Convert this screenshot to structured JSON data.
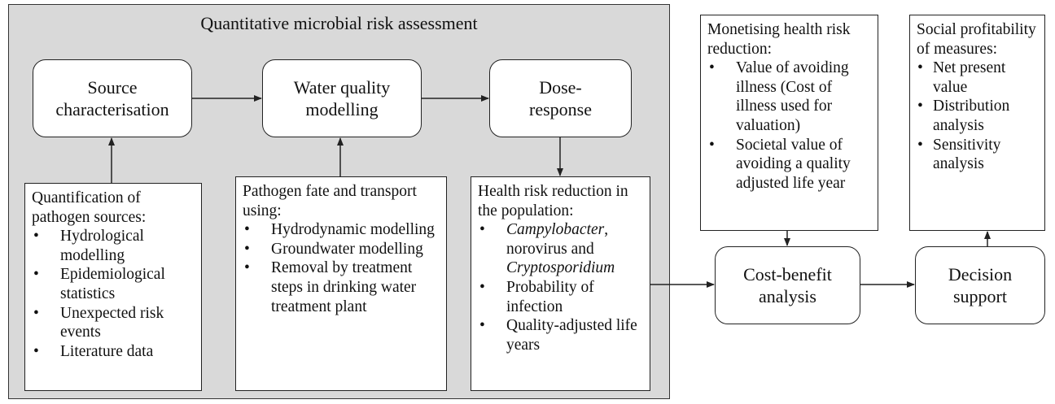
{
  "title": "Quantitative microbial risk assessment",
  "process_nodes": [
    {
      "label": "Source characterisation"
    },
    {
      "label": "Water quality modelling"
    },
    {
      "label": "Dose-response"
    }
  ],
  "detail_boxes": [
    {
      "heading": "Quantification of pathogen sources:",
      "items": [
        "Hydrological modelling",
        "Epidemiological statistics",
        "Unexpected risk events",
        "Literature data"
      ]
    },
    {
      "heading": "Pathogen fate and transport using:",
      "items": [
        "Hydrodynamic modelling",
        "Groundwater modelling",
        "Removal by treatment steps in drinking water treatment plant"
      ]
    },
    {
      "heading": "Health risk reduction in the population:",
      "items": [
        [
          "Campylobacter",
          ", norovirus and ",
          "Cryptosporidium"
        ],
        "Probability of infection",
        "Quality-adjusted life years"
      ]
    }
  ],
  "valuation_boxes": [
    {
      "heading": "Monetising health risk reduction:",
      "items": [
        "Value of avoiding illness (Cost of illness used for valuation)",
        "Societal value of avoiding a quality adjusted life year"
      ]
    },
    {
      "heading": "Social profitability of measures:",
      "items": [
        "Net present value",
        "Distribution analysis",
        "Sensitivity analysis"
      ]
    }
  ],
  "decision_nodes": [
    {
      "label": "Cost-benefit analysis"
    },
    {
      "label": "Decision support"
    }
  ]
}
